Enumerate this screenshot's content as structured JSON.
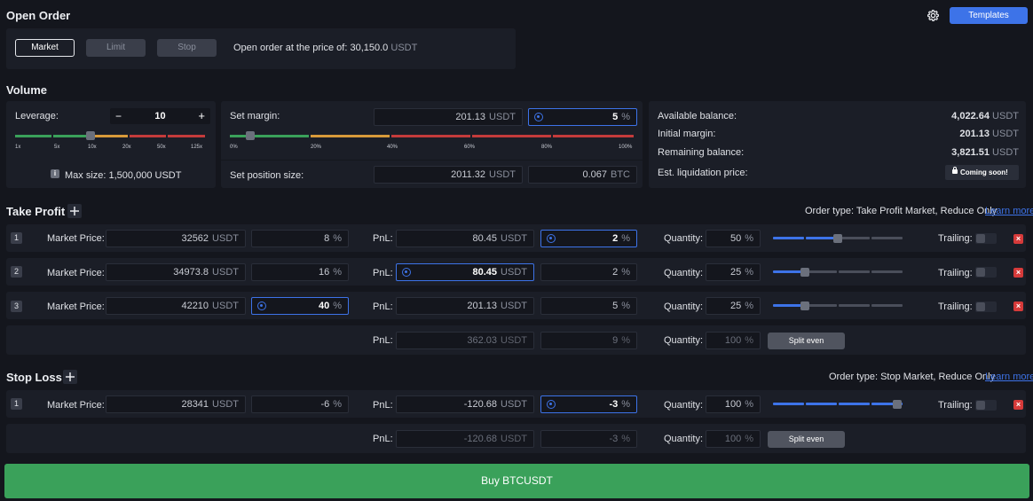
{
  "open_order": {
    "title": "Open Order",
    "tabs": [
      "Market",
      "Limit",
      "Stop"
    ],
    "price_text": "Open order at the price of:",
    "price_value": "30,150.0",
    "price_unit": "USDT",
    "templates_label": "Templates"
  },
  "volume": {
    "title": "Volume",
    "leverage_label": "Leverage:",
    "leverage_value": "10",
    "leverage_minus": "−",
    "leverage_plus": "+",
    "leverage_ticks": [
      "1x",
      "5x",
      "10x",
      "20x",
      "50x",
      "125x"
    ],
    "max_size_label": "Max size: 1,500,000 USDT",
    "set_margin_label": "Set margin:",
    "margin_value": "201.13",
    "margin_unit": "USDT",
    "margin_pct": "5",
    "pct_unit": "%",
    "margin_ticks": [
      "0%",
      "20%",
      "40%",
      "60%",
      "80%",
      "100%"
    ],
    "position_size_label": "Set position size:",
    "position_usdt": "2011.32",
    "position_btc": "0.067",
    "btc_unit": "BTC",
    "balance": {
      "available_label": "Available balance:",
      "available_value": "4,022.64",
      "initial_label": "Initial margin:",
      "initial_value": "201.13",
      "remaining_label": "Remaining balance:",
      "remaining_value": "3,821.51",
      "liq_label": "Est. liquidation price:",
      "coming_soon": "Coming soon!",
      "unit": "USDT"
    }
  },
  "take_profit": {
    "title": "Take Profit",
    "add_icon": "plus-icon",
    "order_type": "Order type: Take Profit Market, Reduce Only",
    "learn_more": "Learn more",
    "rows": [
      {
        "idx": "1",
        "market_label": "Market Price:",
        "price": "32562",
        "pct": "8",
        "pnl_label": "PnL:",
        "pnl": "80.45",
        "pnl_pct": "2",
        "qty_label": "Quantity:",
        "qty": "50",
        "slider_fraction": 0.5,
        "trailing_label": "Trailing:"
      },
      {
        "idx": "2",
        "market_label": "Market Price:",
        "price": "34973.8",
        "pct": "16",
        "pnl_label": "PnL:",
        "pnl": "80.45",
        "pnl_pct": "2",
        "qty_label": "Quantity:",
        "qty": "25",
        "slider_fraction": 0.25,
        "trailing_label": "Trailing:"
      },
      {
        "idx": "3",
        "market_label": "Market Price:",
        "price": "42210",
        "pct": "40",
        "pnl_label": "PnL:",
        "pnl": "201.13",
        "pnl_pct": "5",
        "qty_label": "Quantity:",
        "qty": "25",
        "slider_fraction": 0.25,
        "trailing_label": "Trailing:"
      }
    ],
    "summary": {
      "pnl_label": "PnL:",
      "pnl": "362.03",
      "pnl_pct": "9",
      "qty_label": "Quantity:",
      "qty": "100",
      "split_label": "Split even"
    }
  },
  "stop_loss": {
    "title": "Stop Loss",
    "add_icon": "plus-icon",
    "order_type": "Order type: Stop Market, Reduce Only",
    "learn_more": "Learn more",
    "rows": [
      {
        "idx": "1",
        "market_label": "Market Price:",
        "price": "28341",
        "pct": "-6",
        "pnl_label": "PnL:",
        "pnl": "-120.68",
        "pnl_pct": "-3",
        "qty_label": "Quantity:",
        "qty": "100",
        "slider_fraction": 1.0,
        "trailing_label": "Trailing:"
      }
    ],
    "summary": {
      "pnl_label": "PnL:",
      "pnl": "-120.68",
      "pnl_pct": "-3",
      "qty_label": "Quantity:",
      "qty": "100",
      "split_label": "Split even"
    }
  },
  "buy_button": "Buy BTCUSDT",
  "colors": {
    "accent": "#3d73e8",
    "buy": "#3aa15a",
    "danger": "#d63a3a",
    "bg": "#14161d",
    "panel": "#1b1e27"
  }
}
